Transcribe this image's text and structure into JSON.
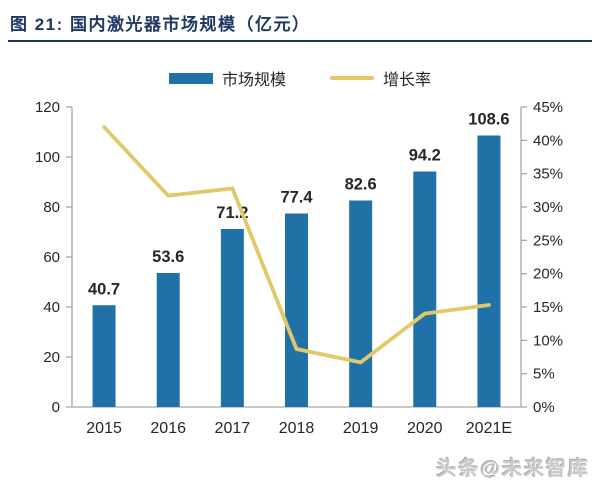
{
  "title": "图 21:  国内激光器市场规模（亿元）",
  "legend": {
    "items": [
      {
        "label": "市场规模",
        "swatch": "bar-swatch",
        "color": "#2171A9"
      },
      {
        "label": "增长率",
        "swatch": "line-swatch",
        "color": "#E2C968"
      }
    ]
  },
  "watermark": "头条@未来智库",
  "chart_data": {
    "type": "bar+line",
    "title": "国内激光器市场规模（亿元）",
    "categories": [
      "2015",
      "2016",
      "2017",
      "2018",
      "2019",
      "2020",
      "2021E"
    ],
    "series": [
      {
        "name": "市场规模",
        "type": "bar",
        "axis": "left",
        "color": "#2171A9",
        "values": [
          40.7,
          53.6,
          71.2,
          77.4,
          82.6,
          94.2,
          108.6
        ],
        "data_labels": [
          "40.7",
          "53.6",
          "71.2",
          "77.4",
          "82.6",
          "94.2",
          "108.6"
        ]
      },
      {
        "name": "增长率",
        "type": "line",
        "axis": "right",
        "color": "#E2C968",
        "values": [
          42.0,
          31.7,
          32.8,
          8.7,
          6.7,
          14.0,
          15.3
        ]
      }
    ],
    "left_axis": {
      "min": 0,
      "max": 120,
      "ticks": [
        0,
        20,
        40,
        60,
        80,
        100,
        120
      ],
      "suffix": ""
    },
    "right_axis": {
      "min": 0,
      "max": 45,
      "ticks": [
        0,
        5,
        10,
        15,
        20,
        25,
        30,
        35,
        40,
        45
      ],
      "suffix": "%"
    },
    "grid": false,
    "legend_position": "top",
    "axis_color": "#A6A6A6",
    "tick_label_color": "#262626",
    "bar_label_color": "#1a1a1a"
  }
}
